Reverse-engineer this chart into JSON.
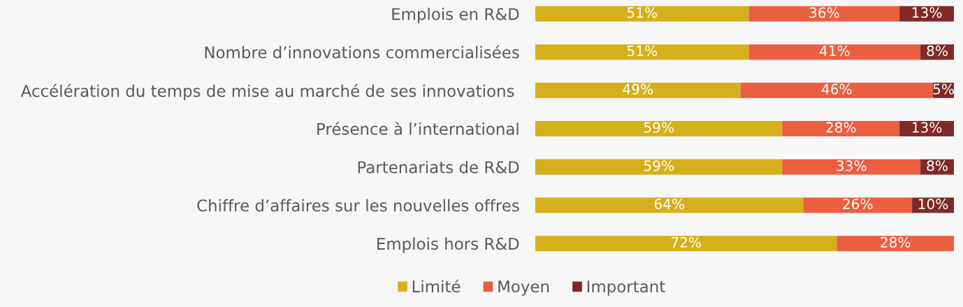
{
  "chart_data": {
    "type": "bar",
    "orientation": "horizontal",
    "stacked": true,
    "tick_labels": "y",
    "legend": "bottom",
    "categories": [
      "Emplois en R&D",
      "Nombre d’innovations commercialisées",
      "Accélération du temps de mise au marché de ses innovations ",
      "Présence à l’international",
      "Partenariats de R&D",
      "Chiffre d’affaires sur les nouvelles offres",
      "Emplois hors R&D"
    ],
    "series": [
      {
        "name": "Limité",
        "color": "#d6b01a",
        "values": [
          51,
          51,
          49,
          59,
          59,
          64,
          72
        ],
        "value_labels": [
          "51%",
          "51%",
          "49%",
          "59%",
          "59%",
          "64%",
          "72%"
        ]
      },
      {
        "name": "Moyen",
        "color": "#eb5e40",
        "values": [
          36,
          41,
          46,
          28,
          33,
          26,
          28
        ],
        "value_labels": [
          "36%",
          "41%",
          "46%",
          "28%",
          "33%",
          "26%",
          "28%"
        ]
      },
      {
        "name": "Important",
        "color": "#7f2a28",
        "values": [
          13,
          8,
          5,
          13,
          8,
          10,
          null
        ],
        "value_labels": [
          "13%",
          "8%",
          "5%",
          "13%",
          "8%",
          "10%",
          null
        ]
      }
    ]
  }
}
